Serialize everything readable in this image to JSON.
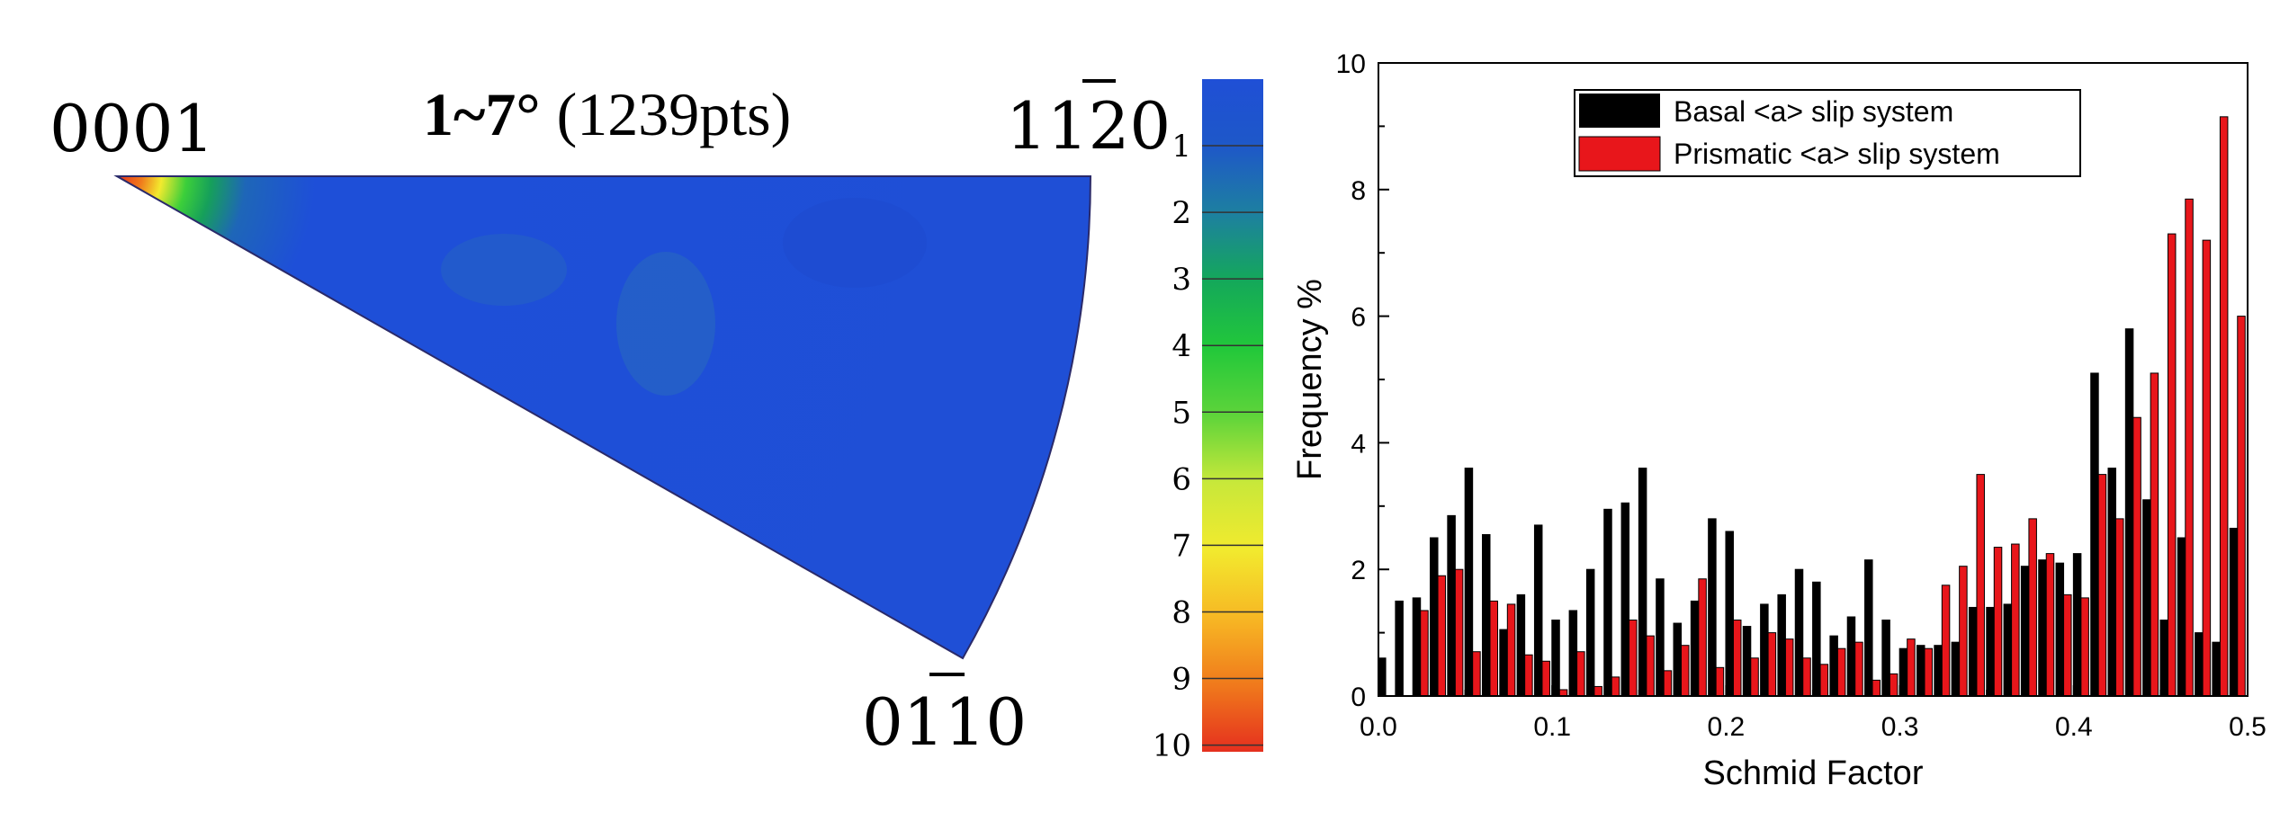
{
  "pole_figure": {
    "title_bold": "1~7°",
    "title_count": "(1239pts)",
    "labels": {
      "corner_0001": "0001",
      "corner_1120": "1120",
      "corner_0110": "0110"
    },
    "colorbar": {
      "ticks": [
        "1",
        "2",
        "3",
        "4",
        "5",
        "6",
        "7",
        "8",
        "9",
        "10"
      ],
      "colors": [
        "#1f4fd6",
        "#1e6fa8",
        "#16a05a",
        "#22c83a",
        "#5ed43a",
        "#c8e83a",
        "#f2ea2e",
        "#f7b824",
        "#f07a1c",
        "#e5301e"
      ]
    },
    "colors": {
      "field": "#1e4fd8",
      "edge": "#1a44c4"
    }
  },
  "chart_data": {
    "type": "bar",
    "xlabel": "Schmid Factor",
    "ylabel": "Frequency %",
    "xlim": [
      0,
      0.5
    ],
    "ylim": [
      0,
      10
    ],
    "xticks": [
      "0.0",
      "0.1",
      "0.2",
      "0.3",
      "0.4",
      "0.5"
    ],
    "yticks": [
      "0",
      "2",
      "4",
      "6",
      "8",
      "10"
    ],
    "legend_position": "top-right",
    "x": [
      0.0,
      0.01,
      0.02,
      0.03,
      0.04,
      0.05,
      0.06,
      0.07,
      0.08,
      0.09,
      0.1,
      0.11,
      0.12,
      0.13,
      0.14,
      0.15,
      0.16,
      0.17,
      0.18,
      0.19,
      0.2,
      0.21,
      0.22,
      0.23,
      0.24,
      0.25,
      0.26,
      0.27,
      0.28,
      0.29,
      0.3,
      0.31,
      0.32,
      0.33,
      0.34,
      0.35,
      0.36,
      0.37,
      0.38,
      0.39,
      0.4,
      0.41,
      0.42,
      0.43,
      0.44,
      0.45,
      0.46,
      0.47,
      0.48,
      0.49
    ],
    "series": [
      {
        "name": "Basal <a> slip system",
        "color": "#000000",
        "values": [
          0.6,
          1.5,
          1.55,
          2.5,
          2.85,
          3.6,
          2.55,
          1.05,
          1.6,
          2.7,
          1.2,
          1.35,
          2.0,
          2.95,
          3.05,
          3.6,
          1.85,
          1.15,
          1.5,
          2.8,
          2.6,
          1.1,
          1.45,
          1.6,
          2.0,
          1.8,
          0.95,
          1.25,
          2.15,
          1.2,
          0.75,
          0.8,
          0.8,
          0.85,
          1.4,
          1.4,
          1.45,
          2.05,
          2.15,
          2.1,
          2.25,
          5.1,
          3.6,
          5.8,
          3.1,
          1.2,
          2.5,
          1.0,
          0.85,
          2.65
        ]
      },
      {
        "name": "Prismatic <a> slip system",
        "color": "#e8161b",
        "values": [
          0.0,
          0.0,
          1.35,
          1.9,
          2.0,
          0.7,
          1.5,
          1.45,
          0.65,
          0.55,
          0.1,
          0.7,
          0.15,
          0.3,
          1.2,
          0.95,
          0.4,
          0.8,
          1.85,
          0.45,
          1.2,
          0.6,
          1.0,
          0.9,
          0.6,
          0.5,
          0.75,
          0.85,
          0.25,
          0.35,
          0.9,
          0.75,
          1.75,
          2.05,
          3.5,
          2.35,
          2.4,
          2.8,
          2.25,
          1.6,
          1.55,
          3.5,
          2.8,
          4.4,
          5.1,
          7.3,
          7.85,
          7.2,
          9.15,
          6.0
        ]
      }
    ]
  }
}
